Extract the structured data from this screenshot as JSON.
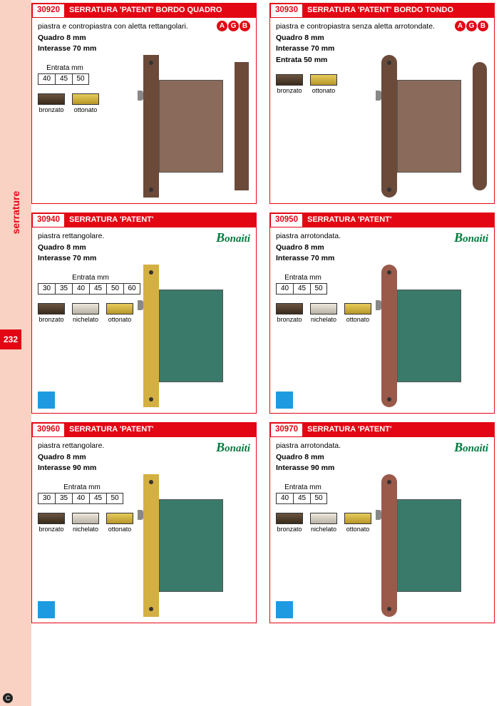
{
  "sidebar": {
    "label": "serrature",
    "page": "232"
  },
  "cards": [
    {
      "code": "30920",
      "title": "SERRATURA 'PATENT' BORDO QUADRO",
      "desc": "piastra e contropiastra con aletta rettangolari.",
      "spec1": "Quadro 8 mm",
      "spec2": "Interasse 70 mm",
      "brand": "agb",
      "entrata_label": "Entrata mm",
      "entrata": [
        "40",
        "45",
        "50"
      ],
      "swatches": [
        {
          "label": "bronzato",
          "color": "#5a4330",
          "grad": "linear-gradient(#6b5440,#3a2a1c)"
        },
        {
          "label": "ottonato",
          "color": "#d4b040",
          "grad": "linear-gradient(#e6cc5a,#b8962a)"
        }
      ],
      "plate_color": "#6b4a3a",
      "plate_round": false,
      "body_color": "#8a6a5a",
      "show_strike": true,
      "strike_round": false
    },
    {
      "code": "30930",
      "title": "SERRATURA 'PATENT' BORDO TONDO",
      "desc": "piastra e contropiastra senza aletta arrotondate.",
      "spec1": "Quadro 8 mm",
      "spec2": "Interasse 70 mm",
      "brand": "agb",
      "entrata_label": "Entrata 50 mm",
      "entrata": [],
      "swatches": [
        {
          "label": "bronzato",
          "color": "#5a4330",
          "grad": "linear-gradient(#6b5440,#3a2a1c)"
        },
        {
          "label": "ottonato",
          "color": "#d4b040",
          "grad": "linear-gradient(#e6cc5a,#b8962a)"
        }
      ],
      "plate_color": "#6b4a3a",
      "plate_round": true,
      "body_color": "#8a6a5a",
      "show_strike": true,
      "strike_round": true
    },
    {
      "code": "30940",
      "title": "SERRATURA 'PATENT'",
      "desc": "piastra rettangolare.",
      "spec1": "Quadro 8 mm",
      "spec2": "Interasse 70 mm",
      "brand": "bonaiti",
      "entrata_label": "Entrata mm",
      "entrata": [
        "30",
        "35",
        "40",
        "45",
        "50",
        "60"
      ],
      "swatches": [
        {
          "label": "bronzato",
          "color": "#5a4330",
          "grad": "linear-gradient(#6b5440,#3a2a1c)"
        },
        {
          "label": "nichelato",
          "color": "#d8d4cc",
          "grad": "linear-gradient(#eee8dc,#b8b2a6)"
        },
        {
          "label": "ottonato",
          "color": "#d4b040",
          "grad": "linear-gradient(#e6cc5a,#b8962a)"
        }
      ],
      "plate_color": "#d4b040",
      "plate_round": false,
      "body_color": "#3a7a6a",
      "show_strike": false,
      "blue_sq": true
    },
    {
      "code": "30950",
      "title": "SERRATURA 'PATENT'",
      "desc": "piastra arrotondata.",
      "spec1": "Quadro 8 mm",
      "spec2": "Interasse 70 mm",
      "brand": "bonaiti",
      "entrata_label": "Entrata mm",
      "entrata": [
        "40",
        "45",
        "50"
      ],
      "swatches": [
        {
          "label": "bronzato",
          "color": "#5a4330",
          "grad": "linear-gradient(#6b5440,#3a2a1c)"
        },
        {
          "label": "nichelato",
          "color": "#d8d4cc",
          "grad": "linear-gradient(#eee8dc,#b8b2a6)"
        },
        {
          "label": "ottonato",
          "color": "#d4b040",
          "grad": "linear-gradient(#e6cc5a,#b8962a)"
        }
      ],
      "plate_color": "#9a5a4a",
      "plate_round": true,
      "body_color": "#3a7a6a",
      "show_strike": false,
      "blue_sq": true
    },
    {
      "code": "30960",
      "title": "SERRATURA 'PATENT'",
      "desc": "piastra rettangolare.",
      "spec1": "Quadro 8 mm",
      "spec2": "Interasse 90 mm",
      "brand": "bonaiti",
      "entrata_label": "Entrata mm",
      "entrata": [
        "30",
        "35",
        "40",
        "45",
        "50"
      ],
      "swatches": [
        {
          "label": "bronzato",
          "color": "#5a4330",
          "grad": "linear-gradient(#6b5440,#3a2a1c)"
        },
        {
          "label": "nichelato",
          "color": "#d8d4cc",
          "grad": "linear-gradient(#eee8dc,#b8b2a6)"
        },
        {
          "label": "ottonato",
          "color": "#d4b040",
          "grad": "linear-gradient(#e6cc5a,#b8962a)"
        }
      ],
      "plate_color": "#d4b040",
      "plate_round": false,
      "body_color": "#3a7a6a",
      "show_strike": false,
      "blue_sq": true
    },
    {
      "code": "30970",
      "title": "SERRATURA 'PATENT'",
      "desc": "piastra arrotondata.",
      "spec1": "Quadro 8 mm",
      "spec2": "Interasse 90 mm",
      "brand": "bonaiti",
      "entrata_label": "Entrata mm",
      "entrata": [
        "40",
        "45",
        "50"
      ],
      "swatches": [
        {
          "label": "bronzato",
          "color": "#5a4330",
          "grad": "linear-gradient(#6b5440,#3a2a1c)"
        },
        {
          "label": "nichelato",
          "color": "#d8d4cc",
          "grad": "linear-gradient(#eee8dc,#b8b2a6)"
        },
        {
          "label": "ottonato",
          "color": "#d4b040",
          "grad": "linear-gradient(#e6cc5a,#b8962a)"
        }
      ],
      "plate_color": "#9a5a4a",
      "plate_round": true,
      "body_color": "#3a7a6a",
      "show_strike": false,
      "blue_sq": true
    }
  ],
  "agb_letters": [
    "A",
    "G",
    "B"
  ],
  "bonaiti_text": "onaiti",
  "footer_mark": "C"
}
